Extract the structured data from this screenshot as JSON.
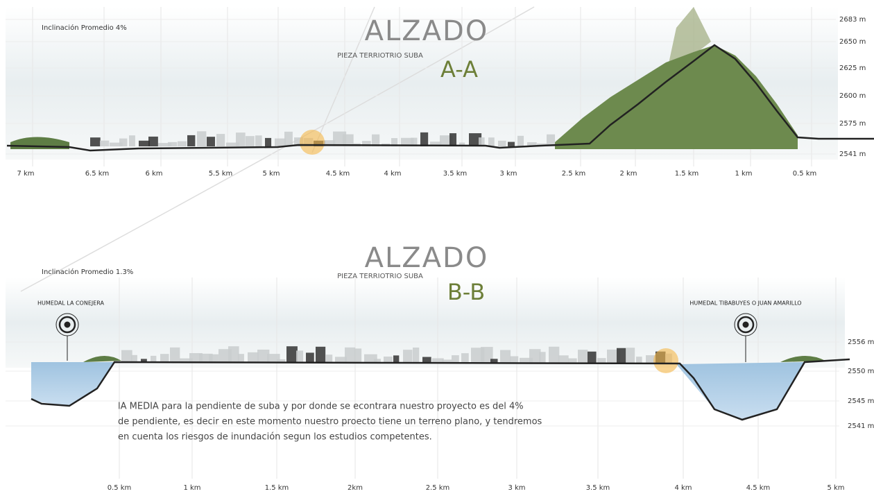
{
  "section_a": {
    "slope": "Inclinación Promedio 4%",
    "title": "ALZADO",
    "subtitle": "PIEZA TERRIOTRIO SUBA",
    "label": "A-A",
    "elevations": [
      "2683 m",
      "2650 m",
      "2625 m",
      "2600 m",
      "2575 m",
      "2541 m"
    ],
    "distances": [
      "7 km",
      "6.5 km",
      "6 km",
      "5.5 km",
      "5 km",
      "4.5 km",
      "4 km",
      "3.5 km",
      "3 km",
      "2.5 km",
      "2 km",
      "1.5 km",
      "1 km",
      "0.5 km"
    ]
  },
  "section_b": {
    "slope": "Inclinación Promedio 1.3%",
    "title": "ALZADO",
    "subtitle": "PIEZA TERRIOTRIO SUBA",
    "label": "B-B",
    "markers": [
      "HUMEDAL LA CONEJERA",
      "HUMEDAL TIBABUYES O JUAN AMARILLO"
    ],
    "elevations": [
      "2556 m",
      "2550 m",
      "2545 m",
      "2541 m"
    ],
    "note": [
      "lA MEDIA para la pendiente de suba y por donde se econtrara nuestro proyecto es del 4%",
      "de pendiente, es decir en este momento nuestro proecto tiene un terreno plano, y tendremos",
      "en cuenta los riesgos de inundación segun los estudios competentes."
    ],
    "distances": [
      "0.5 km",
      "1 km",
      "1.5 km",
      "2km",
      "2.5 km",
      "3 km",
      "3.5 km",
      "4 km",
      "4.5 km",
      "5 km"
    ]
  }
}
